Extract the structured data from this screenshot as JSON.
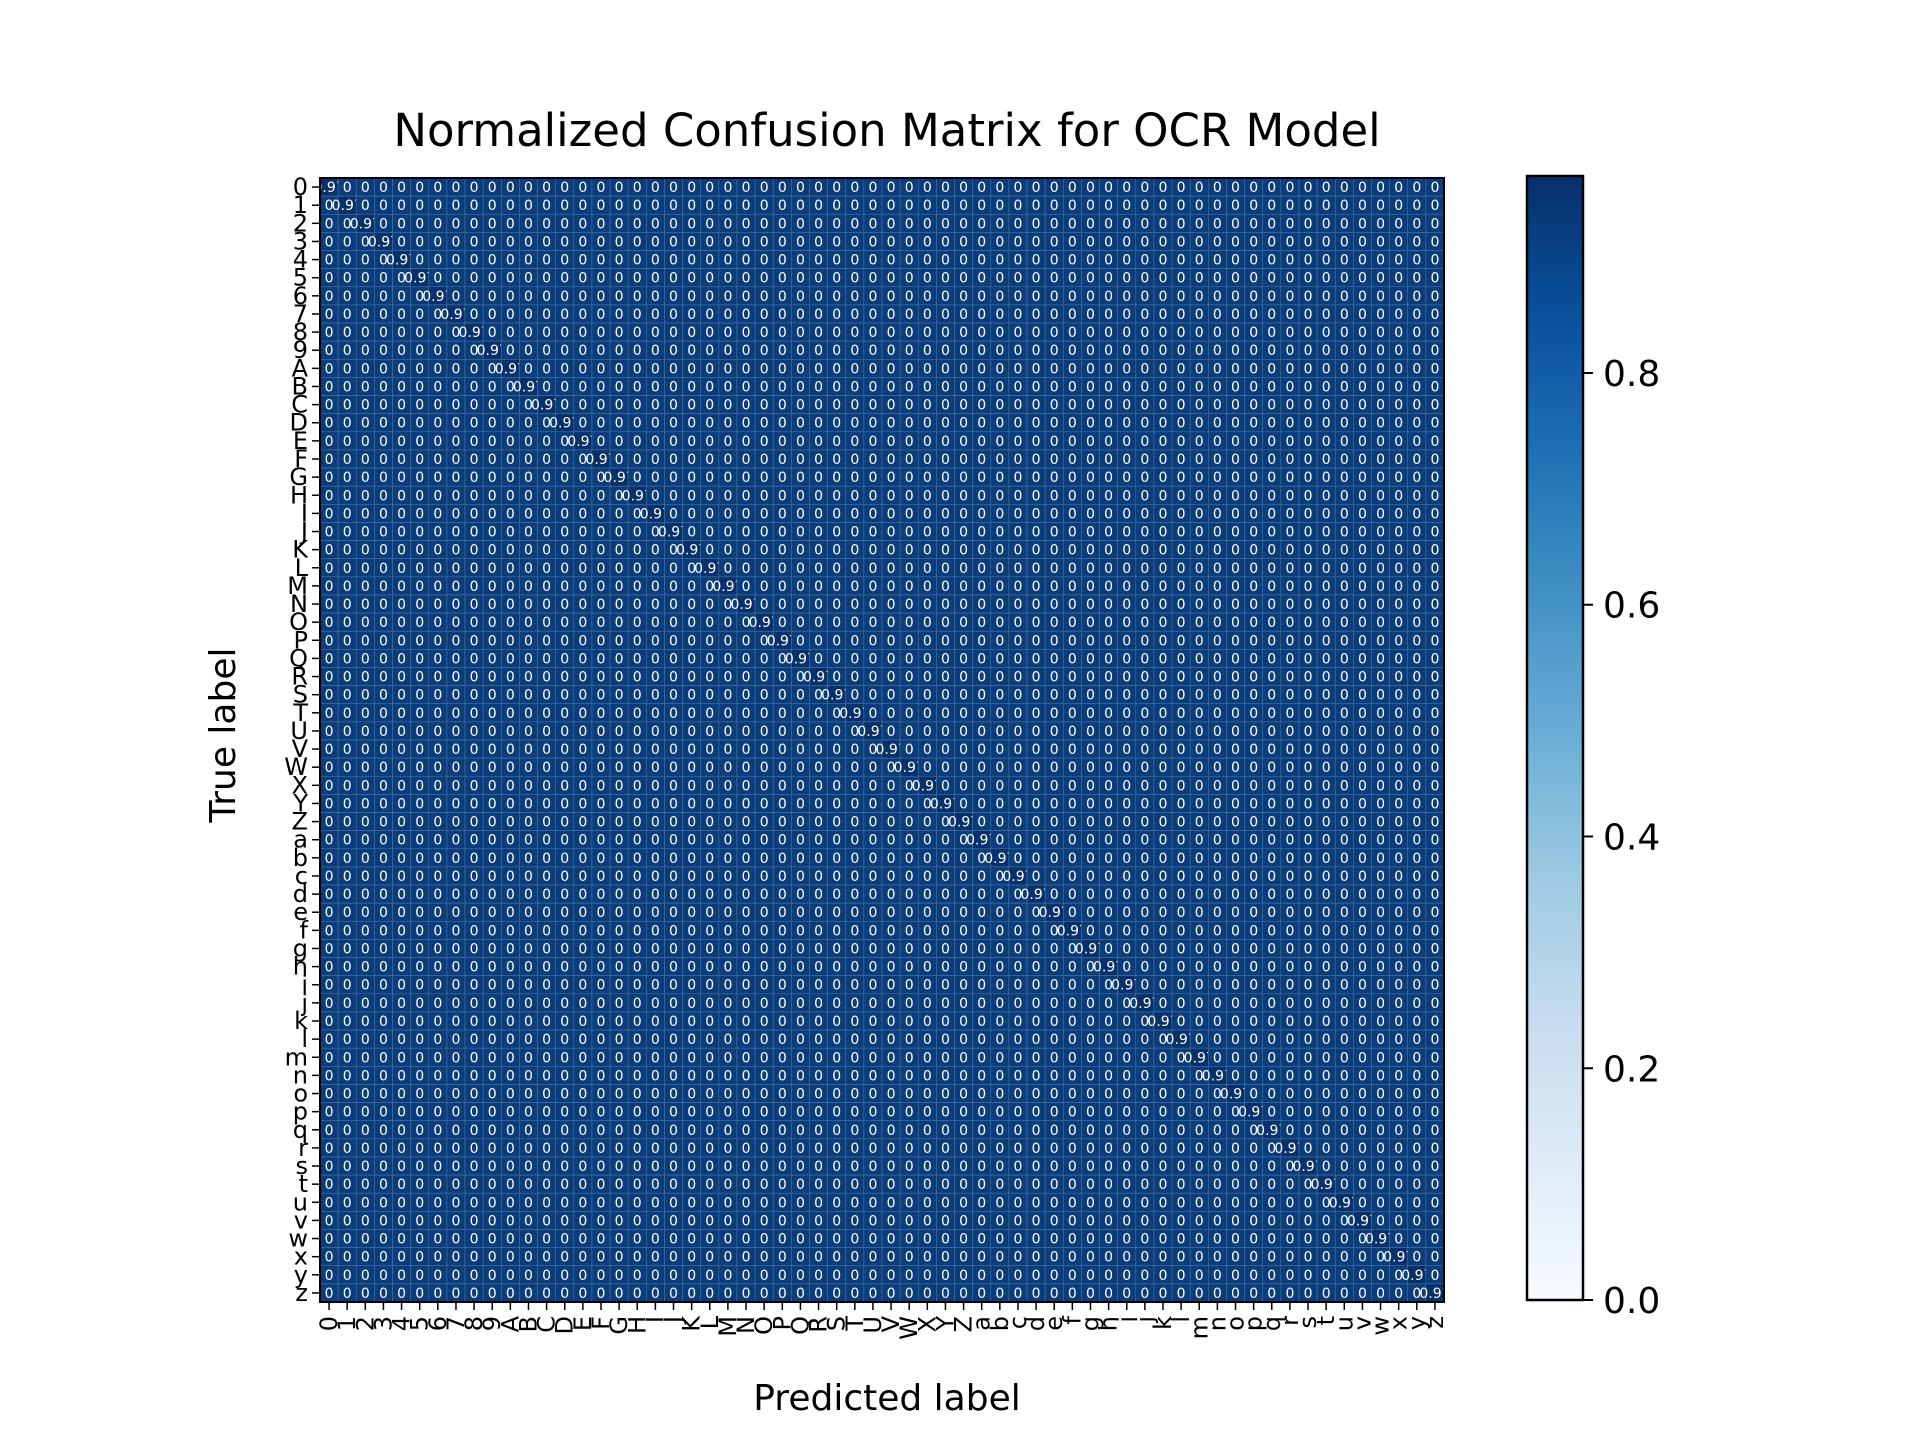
{
  "chart_data": {
    "type": "heatmap",
    "title": "Normalized Confusion Matrix for OCR Model",
    "xlabel": "Predicted label",
    "ylabel": "True label",
    "labels": [
      "0",
      "1",
      "2",
      "3",
      "4",
      "5",
      "6",
      "7",
      "8",
      "9",
      "A",
      "B",
      "C",
      "D",
      "E",
      "F",
      "G",
      "H",
      "I",
      "J",
      "K",
      "L",
      "M",
      "N",
      "O",
      "P",
      "Q",
      "R",
      "S",
      "T",
      "U",
      "V",
      "W",
      "X",
      "Y",
      "Z",
      "a",
      "b",
      "c",
      "d",
      "e",
      "f",
      "g",
      "h",
      "i",
      "j",
      "k",
      "l",
      "m",
      "n",
      "o",
      "p",
      "q",
      "r",
      "s",
      "t",
      "u",
      "v",
      "w",
      "x",
      "y",
      "z"
    ],
    "cell_text_offdiag": "0",
    "cell_text_diag": "0.97",
    "diagonal_value": 0.97,
    "offdiag_value": 0.0,
    "colorscale": "Blues",
    "colors": {
      "low": "#f7fbff",
      "high": "#08306b",
      "cell_border": "#08306b"
    },
    "colorbar": {
      "min": 0.0,
      "max": 0.97,
      "ticks": [
        0.0,
        0.2,
        0.4,
        0.6,
        0.8
      ],
      "tick_labels": [
        "0.0",
        "0.2",
        "0.4",
        "0.6",
        "0.8"
      ]
    }
  }
}
